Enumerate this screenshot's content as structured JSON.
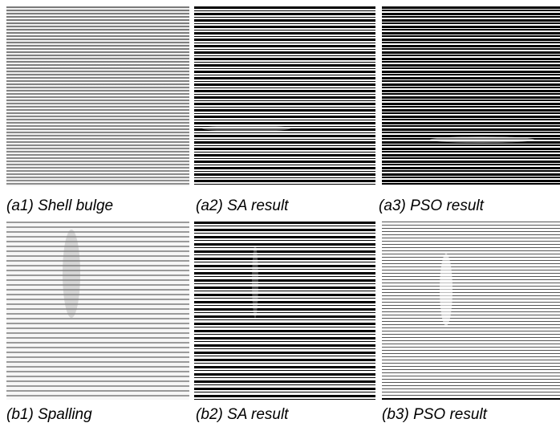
{
  "panels": [
    {
      "caption": "(a1) Shell bulge"
    },
    {
      "caption": "(a2) SA result"
    },
    {
      "caption": "(a3) PSO result"
    },
    {
      "caption": "(b1) Spalling"
    },
    {
      "caption": "(b2) SA result"
    },
    {
      "caption": "(b3) PSO result"
    }
  ]
}
